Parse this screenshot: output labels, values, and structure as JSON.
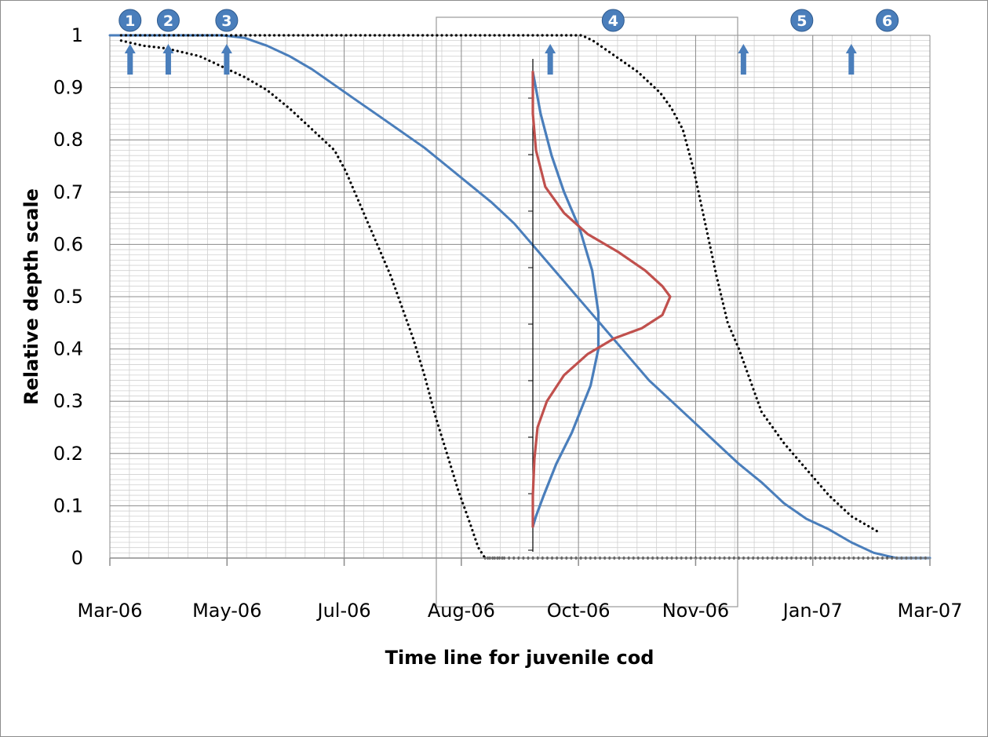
{
  "chart_data": {
    "type": "line",
    "xlabel": "Time line for juvenile cod",
    "ylabel": "Relative depth scale",
    "x_tick_labels": [
      "Mar-06",
      "May-06",
      "Jul-06",
      "Aug-06",
      "Oct-06",
      "Nov-06",
      "Jan-07",
      "Mar-07"
    ],
    "y_tick_labels": [
      "0",
      "0.1",
      "0.2",
      "0.3",
      "0.4",
      "0.5",
      "0.6",
      "0.7",
      "0.8",
      "0.9",
      "1"
    ],
    "x_range_days": [
      0,
      365
    ],
    "ylim": [
      0,
      1
    ],
    "grid": true,
    "series": [
      {
        "style": "solid",
        "color": "#4a7ebb",
        "points": [
          [
            0,
            1.0
          ],
          [
            25,
            1.0
          ],
          [
            50,
            1.0
          ],
          [
            60,
            0.995
          ],
          [
            70,
            0.98
          ],
          [
            80,
            0.96
          ],
          [
            90,
            0.935
          ],
          [
            100,
            0.905
          ],
          [
            110,
            0.875
          ],
          [
            120,
            0.845
          ],
          [
            130,
            0.815
          ],
          [
            140,
            0.785
          ],
          [
            150,
            0.75
          ],
          [
            160,
            0.715
          ],
          [
            170,
            0.68
          ],
          [
            180,
            0.64
          ],
          [
            190,
            0.59
          ],
          [
            200,
            0.54
          ],
          [
            210,
            0.49
          ],
          [
            220,
            0.44
          ],
          [
            230,
            0.39
          ],
          [
            240,
            0.34
          ],
          [
            250,
            0.3
          ],
          [
            260,
            0.26
          ],
          [
            270,
            0.22
          ],
          [
            280,
            0.18
          ],
          [
            290,
            0.145
          ],
          [
            300,
            0.105
          ],
          [
            310,
            0.075
          ],
          [
            320,
            0.055
          ],
          [
            330,
            0.03
          ],
          [
            340,
            0.01
          ],
          [
            350,
            0.0
          ],
          [
            365,
            0.0
          ]
        ]
      },
      {
        "style": "dotted",
        "color": "#000000",
        "points": [
          [
            5,
            0.99
          ],
          [
            15,
            0.98
          ],
          [
            25,
            0.975
          ],
          [
            40,
            0.96
          ],
          [
            50,
            0.94
          ],
          [
            60,
            0.92
          ],
          [
            70,
            0.895
          ],
          [
            80,
            0.86
          ],
          [
            90,
            0.82
          ],
          [
            100,
            0.78
          ],
          [
            105,
            0.74
          ],
          [
            110,
            0.69
          ],
          [
            115,
            0.64
          ],
          [
            120,
            0.59
          ],
          [
            125,
            0.54
          ],
          [
            130,
            0.48
          ],
          [
            135,
            0.42
          ],
          [
            140,
            0.35
          ],
          [
            145,
            0.27
          ],
          [
            150,
            0.2
          ],
          [
            155,
            0.13
          ],
          [
            160,
            0.07
          ],
          [
            164,
            0.02
          ],
          [
            167,
            0.0
          ],
          [
            175,
            0.0
          ]
        ]
      },
      {
        "style": "dotted",
        "color": "#000000",
        "points": [
          [
            5,
            1.0
          ],
          [
            100,
            1.0
          ],
          [
            150,
            1.0
          ],
          [
            180,
            1.0
          ],
          [
            200,
            1.0
          ],
          [
            210,
            1.0
          ],
          [
            215,
            0.99
          ],
          [
            225,
            0.96
          ],
          [
            235,
            0.93
          ],
          [
            245,
            0.89
          ],
          [
            250,
            0.86
          ],
          [
            255,
            0.82
          ],
          [
            260,
            0.74
          ],
          [
            265,
            0.64
          ],
          [
            270,
            0.54
          ],
          [
            275,
            0.45
          ],
          [
            280,
            0.4
          ],
          [
            285,
            0.34
          ],
          [
            290,
            0.28
          ],
          [
            300,
            0.22
          ],
          [
            310,
            0.17
          ],
          [
            320,
            0.12
          ],
          [
            330,
            0.08
          ],
          [
            342,
            0.05
          ]
        ]
      },
      {
        "style": "dotted",
        "color": "#000000",
        "points": [
          [
            167,
            0.0
          ],
          [
            200,
            0.0
          ],
          [
            250,
            0.0
          ],
          [
            300,
            0.0
          ],
          [
            350,
            0.0
          ],
          [
            365,
            0.0
          ]
        ]
      }
    ],
    "inset": {
      "series": [
        {
          "style": "solid",
          "color": "#4a7ebb",
          "points": [
            [
              0.0,
              0.93
            ],
            [
              0.05,
              0.85
            ],
            [
              0.12,
              0.77
            ],
            [
              0.2,
              0.7
            ],
            [
              0.3,
              0.63
            ],
            [
              0.38,
              0.55
            ],
            [
              0.42,
              0.47
            ],
            [
              0.42,
              0.4
            ],
            [
              0.37,
              0.33
            ],
            [
              0.25,
              0.24
            ],
            [
              0.15,
              0.18
            ],
            [
              0.07,
              0.12
            ],
            [
              0.02,
              0.08
            ],
            [
              0.0,
              0.06
            ]
          ]
        },
        {
          "style": "solid",
          "color": "#c0504d",
          "points": [
            [
              0.0,
              0.93
            ],
            [
              0.0,
              0.85
            ],
            [
              0.02,
              0.78
            ],
            [
              0.08,
              0.71
            ],
            [
              0.2,
              0.66
            ],
            [
              0.35,
              0.62
            ],
            [
              0.55,
              0.585
            ],
            [
              0.72,
              0.55
            ],
            [
              0.83,
              0.52
            ],
            [
              0.88,
              0.5
            ],
            [
              0.83,
              0.465
            ],
            [
              0.7,
              0.44
            ],
            [
              0.52,
              0.42
            ],
            [
              0.35,
              0.39
            ],
            [
              0.2,
              0.35
            ],
            [
              0.09,
              0.3
            ],
            [
              0.03,
              0.25
            ],
            [
              0.01,
              0.19
            ],
            [
              0.0,
              0.12
            ],
            [
              0.0,
              0.06
            ]
          ]
        }
      ]
    },
    "annotations": [
      {
        "label": "1",
        "x_day": 9,
        "arrow_x_day": 9
      },
      {
        "label": "2",
        "x_day": 26,
        "arrow_x_day": 26
      },
      {
        "label": "3",
        "x_day": 52,
        "arrow_x_day": 52
      },
      {
        "label": "4",
        "x_day": 224,
        "arrow_x_day": 196
      },
      {
        "label": "5",
        "x_day": 308,
        "arrow_x_day": 282
      },
      {
        "label": "6",
        "x_day": 346,
        "arrow_x_day": 330
      }
    ],
    "colors": {
      "marker_fill": "#4a7ebb",
      "arrow": "#4a7ebb",
      "grid_minor": "#d0d0d0",
      "grid_major": "#8c8c8c"
    }
  }
}
